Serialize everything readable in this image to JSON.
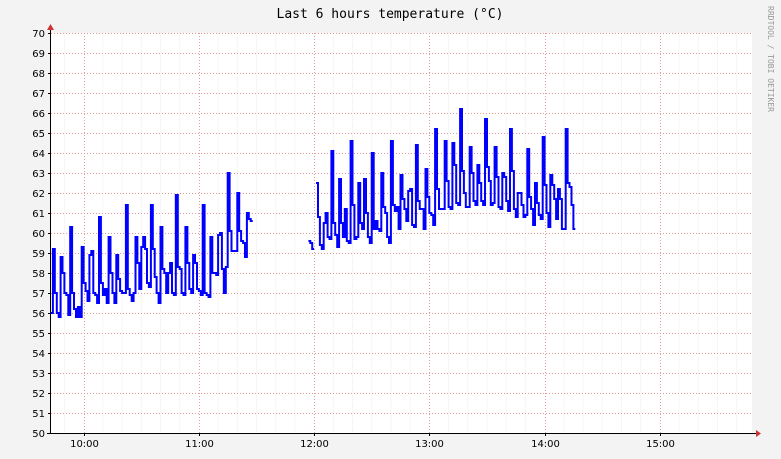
{
  "chart_data": {
    "type": "line",
    "title": "Last 6 hours temperature (°C)",
    "watermark": "RRDTOOL / TOBI OETIKER",
    "xlabel": "",
    "ylabel": "",
    "ylim": [
      50,
      70
    ],
    "y_ticks": [
      50,
      51,
      52,
      53,
      54,
      55,
      56,
      57,
      58,
      59,
      60,
      61,
      62,
      63,
      64,
      65,
      66,
      67,
      68,
      69,
      70
    ],
    "x_range": [
      "09:43",
      "15:48"
    ],
    "x_ticks": [
      {
        "label": "10:00",
        "minute": 600
      },
      {
        "label": "11:00",
        "minute": 660
      },
      {
        "label": "12:00",
        "minute": 720
      },
      {
        "label": "13:00",
        "minute": 780
      },
      {
        "label": "14:00",
        "minute": 840
      },
      {
        "label": "15:00",
        "minute": 900
      }
    ],
    "x_range_minutes": [
      583,
      948
    ],
    "grid": true,
    "colors": {
      "line": "#0000ff",
      "background": "#f3f3f3",
      "canvas": "#ffffff",
      "major_grid": "#e29a9a",
      "minor_grid": "#ececec",
      "axis": "#000000",
      "arrow": "#cc3333"
    },
    "series": [
      {
        "name": "",
        "gaps_minutes": [
          [
            719.5,
            720.5
          ]
        ],
        "points": [
          [
            583,
            56
          ],
          [
            584,
            59.2
          ],
          [
            585,
            57
          ],
          [
            586,
            56
          ],
          [
            587,
            55.8
          ],
          [
            588,
            58.8
          ],
          [
            589,
            58
          ],
          [
            590,
            57
          ],
          [
            591,
            56.9
          ],
          [
            592,
            55.9
          ],
          [
            593,
            60.3
          ],
          [
            594,
            57
          ],
          [
            595,
            56.2
          ],
          [
            596,
            55.8
          ],
          [
            597,
            56.3
          ],
          [
            598,
            55.8
          ],
          [
            599,
            59.3
          ],
          [
            600,
            57.5
          ],
          [
            601,
            57.1
          ],
          [
            602,
            56.6
          ],
          [
            603,
            58.9
          ],
          [
            604,
            59.1
          ],
          [
            605,
            57
          ],
          [
            606,
            56.9
          ],
          [
            607,
            56.5
          ],
          [
            608,
            60.8
          ],
          [
            609,
            57.5
          ],
          [
            610,
            56.9
          ],
          [
            611,
            57.2
          ],
          [
            612,
            56.5
          ],
          [
            613,
            59.8
          ],
          [
            614,
            58
          ],
          [
            615,
            57
          ],
          [
            616,
            56.5
          ],
          [
            617,
            58.9
          ],
          [
            618,
            57.7
          ],
          [
            619,
            57.1
          ],
          [
            620,
            57
          ],
          [
            621,
            57
          ],
          [
            622,
            61.4
          ],
          [
            623,
            57.2
          ],
          [
            624,
            56.9
          ],
          [
            625,
            56.6
          ],
          [
            626,
            57
          ],
          [
            627,
            59.8
          ],
          [
            628,
            58.5
          ],
          [
            629,
            57.2
          ],
          [
            630,
            59.3
          ],
          [
            631,
            59.8
          ],
          [
            632,
            59.2
          ],
          [
            633,
            57.5
          ],
          [
            634,
            57.3
          ],
          [
            635,
            61.4
          ],
          [
            636,
            59.2
          ],
          [
            637,
            57.8
          ],
          [
            638,
            57
          ],
          [
            639,
            56.5
          ],
          [
            640,
            60.3
          ],
          [
            641,
            58.2
          ],
          [
            642,
            58
          ],
          [
            643,
            57
          ],
          [
            644,
            58
          ],
          [
            645,
            58.5
          ],
          [
            646,
            57
          ],
          [
            647,
            56.9
          ],
          [
            648,
            61.9
          ],
          [
            649,
            58.3
          ],
          [
            650,
            58.2
          ],
          [
            651,
            57
          ],
          [
            652,
            56.9
          ],
          [
            653,
            60.3
          ],
          [
            654,
            58.5
          ],
          [
            655,
            57.2
          ],
          [
            656,
            57
          ],
          [
            657,
            58.9
          ],
          [
            658,
            58.5
          ],
          [
            659,
            57.2
          ],
          [
            660,
            57.1
          ],
          [
            661,
            56.9
          ],
          [
            662,
            61.4
          ],
          [
            663,
            57
          ],
          [
            664,
            56.9
          ],
          [
            665,
            56.8
          ],
          [
            666,
            59.8
          ],
          [
            667,
            58
          ],
          [
            668,
            58
          ],
          [
            669,
            57.9
          ],
          [
            670,
            59.9
          ],
          [
            671,
            60
          ],
          [
            672,
            58.2
          ],
          [
            673,
            57
          ],
          [
            674,
            58.3
          ],
          [
            675,
            63
          ],
          [
            676,
            60.1
          ],
          [
            677,
            59.1
          ],
          [
            678,
            59.1
          ],
          [
            679,
            59.1
          ],
          [
            680,
            62
          ],
          [
            681,
            60.1
          ],
          [
            682,
            59.6
          ],
          [
            683,
            59.5
          ],
          [
            684,
            58.8
          ],
          [
            685,
            61
          ],
          [
            686,
            60.7
          ],
          [
            687,
            60.6
          ],
          [
            717,
            59.6
          ],
          [
            718,
            59.5
          ],
          [
            719,
            59.2
          ],
          [
            721,
            62.5
          ],
          [
            722,
            60.8
          ],
          [
            723,
            59.4
          ],
          [
            724,
            59.2
          ],
          [
            725,
            60.5
          ],
          [
            726,
            61
          ],
          [
            727,
            59.8
          ],
          [
            728,
            59.7
          ],
          [
            729,
            64.1
          ],
          [
            730,
            60.5
          ],
          [
            731,
            59.9
          ],
          [
            732,
            59.3
          ],
          [
            733,
            62.7
          ],
          [
            734,
            60.5
          ],
          [
            735,
            59.8
          ],
          [
            736,
            61.2
          ],
          [
            737,
            59.6
          ],
          [
            738,
            59.5
          ],
          [
            739,
            64.6
          ],
          [
            740,
            61.4
          ],
          [
            741,
            59.7
          ],
          [
            742,
            59.8
          ],
          [
            743,
            62.5
          ],
          [
            744,
            60.5
          ],
          [
            745,
            60.2
          ],
          [
            746,
            62.7
          ],
          [
            747,
            61
          ],
          [
            748,
            59.8
          ],
          [
            749,
            59.5
          ],
          [
            750,
            64
          ],
          [
            751,
            60.2
          ],
          [
            752,
            60.6
          ],
          [
            753,
            60.2
          ],
          [
            754,
            60.1
          ],
          [
            755,
            63
          ],
          [
            756,
            61.3
          ],
          [
            757,
            61
          ],
          [
            758,
            59.8
          ],
          [
            759,
            59.5
          ],
          [
            760,
            64.6
          ],
          [
            761,
            61.4
          ],
          [
            762,
            61.1
          ],
          [
            763,
            61.3
          ],
          [
            764,
            60.2
          ],
          [
            765,
            62.9
          ],
          [
            766,
            61.7
          ],
          [
            767,
            61.2
          ],
          [
            768,
            60.6
          ],
          [
            769,
            62.1
          ],
          [
            770,
            62.2
          ],
          [
            771,
            60.4
          ],
          [
            772,
            60.3
          ],
          [
            773,
            64.4
          ],
          [
            774,
            61.6
          ],
          [
            775,
            61.2
          ],
          [
            776,
            61.2
          ],
          [
            777,
            60.2
          ],
          [
            778,
            63.2
          ],
          [
            779,
            61.8
          ],
          [
            780,
            61
          ],
          [
            781,
            60.9
          ],
          [
            782,
            60.4
          ],
          [
            783,
            65.2
          ],
          [
            784,
            62.2
          ],
          [
            785,
            61.2
          ],
          [
            786,
            61.2
          ],
          [
            787,
            61.2
          ],
          [
            788,
            64.6
          ],
          [
            789,
            62.6
          ],
          [
            790,
            61.3
          ],
          [
            791,
            61.2
          ],
          [
            792,
            64.5
          ],
          [
            793,
            63.4
          ],
          [
            794,
            61.5
          ],
          [
            795,
            61.4
          ],
          [
            796,
            66.2
          ],
          [
            797,
            63.1
          ],
          [
            798,
            62
          ],
          [
            799,
            61.3
          ],
          [
            800,
            61.3
          ],
          [
            801,
            64.3
          ],
          [
            802,
            63
          ],
          [
            803,
            61.6
          ],
          [
            804,
            61.4
          ],
          [
            805,
            63.4
          ],
          [
            806,
            62.5
          ],
          [
            807,
            61.6
          ],
          [
            808,
            61.4
          ],
          [
            809,
            65.7
          ],
          [
            810,
            63.3
          ],
          [
            811,
            62.6
          ],
          [
            812,
            61.4
          ],
          [
            813,
            61.5
          ],
          [
            814,
            64.3
          ],
          [
            815,
            62.8
          ],
          [
            816,
            61.3
          ],
          [
            817,
            61.2
          ],
          [
            818,
            63
          ],
          [
            819,
            62.8
          ],
          [
            820,
            61.6
          ],
          [
            821,
            61.1
          ],
          [
            822,
            65.2
          ],
          [
            823,
            63.1
          ],
          [
            824,
            61.2
          ],
          [
            825,
            60.8
          ],
          [
            826,
            62
          ],
          [
            827,
            62
          ],
          [
            828,
            61.4
          ],
          [
            829,
            60.8
          ],
          [
            830,
            60.9
          ],
          [
            831,
            64.2
          ],
          [
            832,
            61.8
          ],
          [
            833,
            61.2
          ],
          [
            834,
            60.4
          ],
          [
            835,
            62.5
          ],
          [
            836,
            61.5
          ],
          [
            837,
            60.9
          ],
          [
            838,
            60.7
          ],
          [
            839,
            64.8
          ],
          [
            840,
            62.4
          ],
          [
            841,
            61
          ],
          [
            842,
            60.3
          ],
          [
            843,
            62.9
          ],
          [
            844,
            62.4
          ],
          [
            845,
            61.7
          ],
          [
            846,
            60.7
          ],
          [
            847,
            62.2
          ],
          [
            848,
            61.7
          ],
          [
            849,
            60.2
          ],
          [
            850,
            60.2
          ],
          [
            851,
            65.2
          ],
          [
            852,
            62.5
          ],
          [
            853,
            62.3
          ],
          [
            854,
            61.4
          ],
          [
            855,
            60.2
          ]
        ]
      }
    ]
  }
}
